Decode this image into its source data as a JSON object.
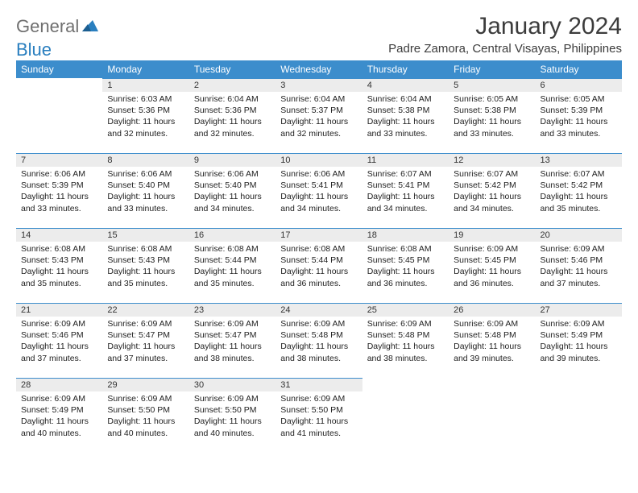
{
  "logo": {
    "part1": "General",
    "part2": "Blue"
  },
  "title": "January 2024",
  "location": "Padre Zamora, Central Visayas, Philippines",
  "colors": {
    "header_bg": "#3c8dcc",
    "header_text": "#ffffff",
    "daynum_bg": "#ececec",
    "daynum_border": "#3c8dcc",
    "body_text": "#222222",
    "logo_gray": "#6f6f6f",
    "logo_blue": "#2a7fbf",
    "title_color": "#3c3c3c"
  },
  "day_headers": [
    "Sunday",
    "Monday",
    "Tuesday",
    "Wednesday",
    "Thursday",
    "Friday",
    "Saturday"
  ],
  "weeks": [
    [
      null,
      {
        "n": "1",
        "sr": "6:03 AM",
        "ss": "5:36 PM",
        "dl": "11 hours and 32 minutes."
      },
      {
        "n": "2",
        "sr": "6:04 AM",
        "ss": "5:36 PM",
        "dl": "11 hours and 32 minutes."
      },
      {
        "n": "3",
        "sr": "6:04 AM",
        "ss": "5:37 PM",
        "dl": "11 hours and 32 minutes."
      },
      {
        "n": "4",
        "sr": "6:04 AM",
        "ss": "5:38 PM",
        "dl": "11 hours and 33 minutes."
      },
      {
        "n": "5",
        "sr": "6:05 AM",
        "ss": "5:38 PM",
        "dl": "11 hours and 33 minutes."
      },
      {
        "n": "6",
        "sr": "6:05 AM",
        "ss": "5:39 PM",
        "dl": "11 hours and 33 minutes."
      }
    ],
    [
      {
        "n": "7",
        "sr": "6:06 AM",
        "ss": "5:39 PM",
        "dl": "11 hours and 33 minutes."
      },
      {
        "n": "8",
        "sr": "6:06 AM",
        "ss": "5:40 PM",
        "dl": "11 hours and 33 minutes."
      },
      {
        "n": "9",
        "sr": "6:06 AM",
        "ss": "5:40 PM",
        "dl": "11 hours and 34 minutes."
      },
      {
        "n": "10",
        "sr": "6:06 AM",
        "ss": "5:41 PM",
        "dl": "11 hours and 34 minutes."
      },
      {
        "n": "11",
        "sr": "6:07 AM",
        "ss": "5:41 PM",
        "dl": "11 hours and 34 minutes."
      },
      {
        "n": "12",
        "sr": "6:07 AM",
        "ss": "5:42 PM",
        "dl": "11 hours and 34 minutes."
      },
      {
        "n": "13",
        "sr": "6:07 AM",
        "ss": "5:42 PM",
        "dl": "11 hours and 35 minutes."
      }
    ],
    [
      {
        "n": "14",
        "sr": "6:08 AM",
        "ss": "5:43 PM",
        "dl": "11 hours and 35 minutes."
      },
      {
        "n": "15",
        "sr": "6:08 AM",
        "ss": "5:43 PM",
        "dl": "11 hours and 35 minutes."
      },
      {
        "n": "16",
        "sr": "6:08 AM",
        "ss": "5:44 PM",
        "dl": "11 hours and 35 minutes."
      },
      {
        "n": "17",
        "sr": "6:08 AM",
        "ss": "5:44 PM",
        "dl": "11 hours and 36 minutes."
      },
      {
        "n": "18",
        "sr": "6:08 AM",
        "ss": "5:45 PM",
        "dl": "11 hours and 36 minutes."
      },
      {
        "n": "19",
        "sr": "6:09 AM",
        "ss": "5:45 PM",
        "dl": "11 hours and 36 minutes."
      },
      {
        "n": "20",
        "sr": "6:09 AM",
        "ss": "5:46 PM",
        "dl": "11 hours and 37 minutes."
      }
    ],
    [
      {
        "n": "21",
        "sr": "6:09 AM",
        "ss": "5:46 PM",
        "dl": "11 hours and 37 minutes."
      },
      {
        "n": "22",
        "sr": "6:09 AM",
        "ss": "5:47 PM",
        "dl": "11 hours and 37 minutes."
      },
      {
        "n": "23",
        "sr": "6:09 AM",
        "ss": "5:47 PM",
        "dl": "11 hours and 38 minutes."
      },
      {
        "n": "24",
        "sr": "6:09 AM",
        "ss": "5:48 PM",
        "dl": "11 hours and 38 minutes."
      },
      {
        "n": "25",
        "sr": "6:09 AM",
        "ss": "5:48 PM",
        "dl": "11 hours and 38 minutes."
      },
      {
        "n": "26",
        "sr": "6:09 AM",
        "ss": "5:48 PM",
        "dl": "11 hours and 39 minutes."
      },
      {
        "n": "27",
        "sr": "6:09 AM",
        "ss": "5:49 PM",
        "dl": "11 hours and 39 minutes."
      }
    ],
    [
      {
        "n": "28",
        "sr": "6:09 AM",
        "ss": "5:49 PM",
        "dl": "11 hours and 40 minutes."
      },
      {
        "n": "29",
        "sr": "6:09 AM",
        "ss": "5:50 PM",
        "dl": "11 hours and 40 minutes."
      },
      {
        "n": "30",
        "sr": "6:09 AM",
        "ss": "5:50 PM",
        "dl": "11 hours and 40 minutes."
      },
      {
        "n": "31",
        "sr": "6:09 AM",
        "ss": "5:50 PM",
        "dl": "11 hours and 41 minutes."
      },
      null,
      null,
      null
    ]
  ],
  "labels": {
    "sunrise": "Sunrise:",
    "sunset": "Sunset:",
    "daylight": "Daylight:"
  }
}
